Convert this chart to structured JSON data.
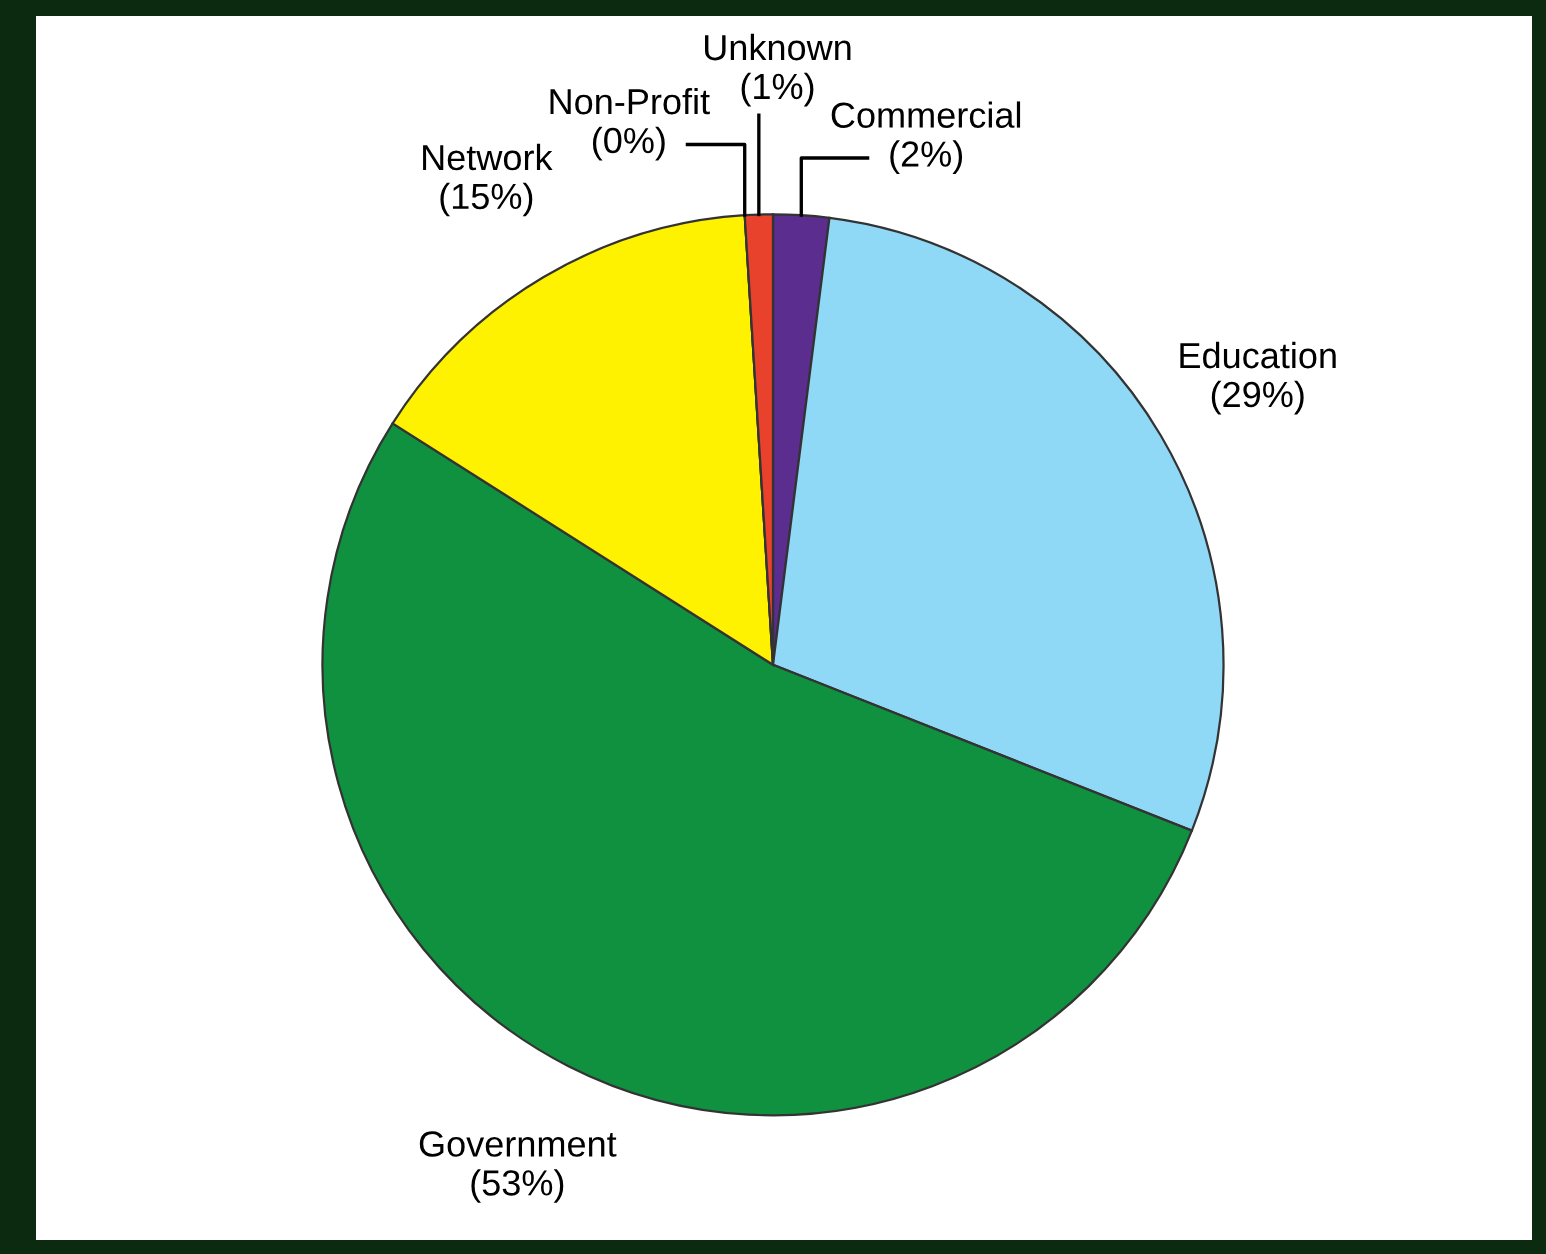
{
  "chart_data": {
    "type": "pie",
    "categories": [
      "Commercial",
      "Education",
      "Government",
      "Network",
      "Non-Profit",
      "Unknown"
    ],
    "values": [
      2,
      29,
      53,
      15,
      0,
      1
    ],
    "colors": [
      "#5b2d8e",
      "#8fd8f6",
      "#0f9140",
      "#fff200",
      "#f7941d",
      "#e8412c"
    ],
    "value_labels": [
      "(2%)",
      "(29%)",
      "(53%)",
      "(15%)",
      "(0%)",
      "(1%)"
    ]
  }
}
